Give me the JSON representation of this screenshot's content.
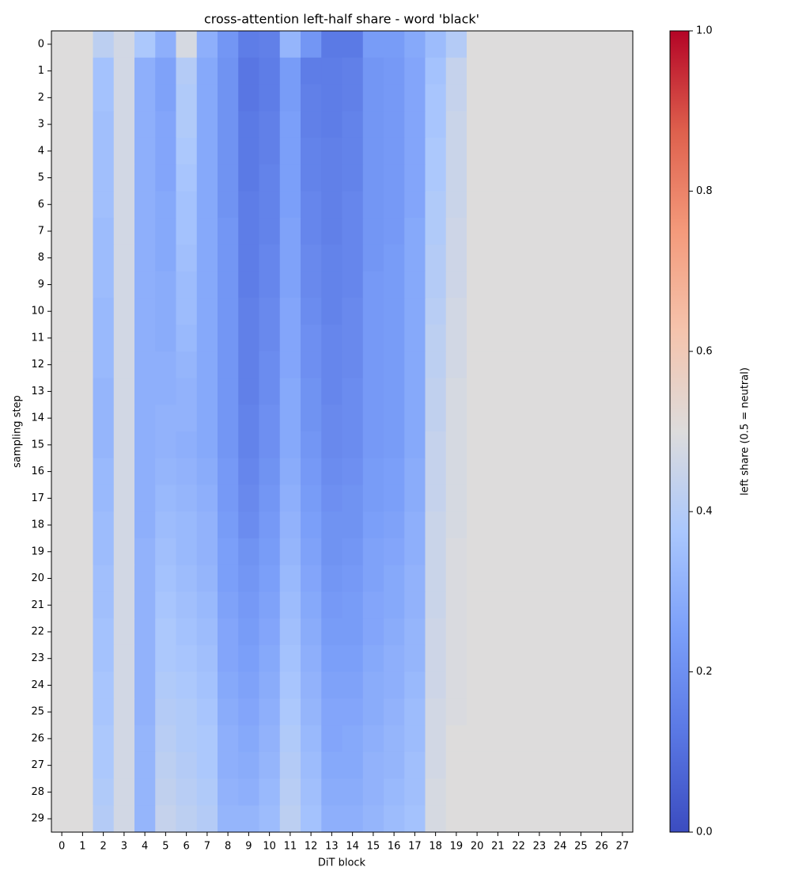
{
  "chart_data": {
    "type": "heatmap",
    "title": "cross-attention left-half share - word 'black'",
    "x_label": "DiT block",
    "y_label": "sampling step",
    "colorbar_label": "left share (0.5 = neutral)",
    "colormap": "coolwarm",
    "clim": [
      0,
      1
    ],
    "cticks": [
      {
        "value": 0,
        "label": "0.0"
      },
      0.2,
      0.4,
      0.6,
      0.8,
      {
        "value": 1,
        "label": "1.0"
      }
    ],
    "x": [
      0,
      1,
      2,
      3,
      4,
      5,
      6,
      7,
      8,
      9,
      10,
      11,
      12,
      13,
      14,
      15,
      16,
      17,
      18,
      19,
      20,
      21,
      22,
      23,
      24,
      25,
      26,
      27
    ],
    "y": [
      0,
      1,
      2,
      3,
      4,
      5,
      6,
      7,
      8,
      9,
      10,
      11,
      12,
      13,
      14,
      15,
      16,
      17,
      18,
      19,
      20,
      21,
      22,
      23,
      24,
      25,
      26,
      27,
      28,
      29
    ],
    "z": [
      [
        0.5,
        0.5,
        0.42,
        0.47,
        0.38,
        0.3,
        0.48,
        0.3,
        0.22,
        0.14,
        0.15,
        0.32,
        0.22,
        0.13,
        0.13,
        0.24,
        0.24,
        0.28,
        0.34,
        0.4,
        0.5,
        0.5,
        0.5,
        0.5,
        0.5,
        0.5,
        0.5,
        0.5
      ],
      [
        0.5,
        0.5,
        0.36,
        0.47,
        0.3,
        0.26,
        0.4,
        0.28,
        0.21,
        0.12,
        0.14,
        0.24,
        0.14,
        0.14,
        0.15,
        0.22,
        0.23,
        0.27,
        0.36,
        0.44,
        0.5,
        0.5,
        0.5,
        0.5,
        0.5,
        0.5,
        0.5,
        0.5
      ],
      [
        0.5,
        0.5,
        0.36,
        0.47,
        0.3,
        0.26,
        0.39,
        0.28,
        0.21,
        0.12,
        0.14,
        0.24,
        0.15,
        0.14,
        0.15,
        0.22,
        0.23,
        0.27,
        0.37,
        0.44,
        0.5,
        0.5,
        0.5,
        0.5,
        0.5,
        0.5,
        0.5,
        0.5
      ],
      [
        0.5,
        0.5,
        0.35,
        0.47,
        0.3,
        0.27,
        0.39,
        0.28,
        0.21,
        0.13,
        0.15,
        0.25,
        0.15,
        0.14,
        0.16,
        0.22,
        0.23,
        0.27,
        0.37,
        0.45,
        0.5,
        0.5,
        0.5,
        0.5,
        0.5,
        0.5,
        0.5,
        0.5
      ],
      [
        0.5,
        0.5,
        0.35,
        0.47,
        0.3,
        0.27,
        0.38,
        0.28,
        0.21,
        0.13,
        0.15,
        0.25,
        0.16,
        0.15,
        0.16,
        0.22,
        0.23,
        0.27,
        0.38,
        0.45,
        0.5,
        0.5,
        0.5,
        0.5,
        0.5,
        0.5,
        0.5,
        0.5
      ],
      [
        0.5,
        0.5,
        0.35,
        0.47,
        0.3,
        0.27,
        0.37,
        0.28,
        0.21,
        0.13,
        0.16,
        0.25,
        0.16,
        0.15,
        0.16,
        0.22,
        0.23,
        0.27,
        0.38,
        0.45,
        0.5,
        0.5,
        0.5,
        0.5,
        0.5,
        0.5,
        0.5,
        0.5
      ],
      [
        0.5,
        0.5,
        0.35,
        0.47,
        0.3,
        0.28,
        0.36,
        0.28,
        0.21,
        0.14,
        0.16,
        0.25,
        0.17,
        0.15,
        0.17,
        0.22,
        0.23,
        0.27,
        0.39,
        0.45,
        0.5,
        0.5,
        0.5,
        0.5,
        0.5,
        0.5,
        0.5,
        0.5
      ],
      [
        0.5,
        0.5,
        0.34,
        0.47,
        0.3,
        0.28,
        0.36,
        0.28,
        0.22,
        0.14,
        0.16,
        0.26,
        0.17,
        0.15,
        0.17,
        0.22,
        0.23,
        0.28,
        0.39,
        0.46,
        0.5,
        0.5,
        0.5,
        0.5,
        0.5,
        0.5,
        0.5,
        0.5
      ],
      [
        0.5,
        0.5,
        0.34,
        0.47,
        0.3,
        0.28,
        0.35,
        0.28,
        0.22,
        0.14,
        0.17,
        0.26,
        0.18,
        0.16,
        0.17,
        0.22,
        0.24,
        0.28,
        0.4,
        0.46,
        0.5,
        0.5,
        0.5,
        0.5,
        0.5,
        0.5,
        0.5,
        0.5
      ],
      [
        0.5,
        0.5,
        0.34,
        0.47,
        0.3,
        0.29,
        0.34,
        0.28,
        0.22,
        0.14,
        0.17,
        0.26,
        0.18,
        0.16,
        0.17,
        0.23,
        0.24,
        0.28,
        0.4,
        0.46,
        0.5,
        0.5,
        0.5,
        0.5,
        0.5,
        0.5,
        0.5,
        0.5
      ],
      [
        0.5,
        0.5,
        0.33,
        0.47,
        0.3,
        0.29,
        0.34,
        0.28,
        0.22,
        0.15,
        0.18,
        0.27,
        0.19,
        0.16,
        0.18,
        0.23,
        0.24,
        0.28,
        0.41,
        0.47,
        0.5,
        0.5,
        0.5,
        0.5,
        0.5,
        0.5,
        0.5,
        0.5
      ],
      [
        0.5,
        0.5,
        0.33,
        0.47,
        0.3,
        0.29,
        0.33,
        0.28,
        0.22,
        0.15,
        0.18,
        0.27,
        0.2,
        0.17,
        0.18,
        0.23,
        0.24,
        0.28,
        0.42,
        0.47,
        0.5,
        0.5,
        0.5,
        0.5,
        0.5,
        0.5,
        0.5,
        0.5
      ],
      [
        0.5,
        0.5,
        0.33,
        0.47,
        0.3,
        0.3,
        0.32,
        0.28,
        0.22,
        0.15,
        0.19,
        0.27,
        0.2,
        0.17,
        0.18,
        0.23,
        0.24,
        0.28,
        0.42,
        0.47,
        0.5,
        0.5,
        0.5,
        0.5,
        0.5,
        0.5,
        0.5,
        0.5
      ],
      [
        0.5,
        0.5,
        0.32,
        0.47,
        0.3,
        0.3,
        0.31,
        0.28,
        0.22,
        0.15,
        0.19,
        0.28,
        0.21,
        0.17,
        0.19,
        0.23,
        0.24,
        0.28,
        0.43,
        0.48,
        0.5,
        0.5,
        0.5,
        0.5,
        0.5,
        0.5,
        0.5,
        0.5
      ],
      [
        0.5,
        0.5,
        0.32,
        0.47,
        0.3,
        0.31,
        0.31,
        0.28,
        0.22,
        0.16,
        0.2,
        0.28,
        0.21,
        0.18,
        0.19,
        0.23,
        0.24,
        0.28,
        0.43,
        0.48,
        0.5,
        0.5,
        0.5,
        0.5,
        0.5,
        0.5,
        0.5,
        0.5
      ],
      [
        0.5,
        0.5,
        0.32,
        0.47,
        0.3,
        0.31,
        0.3,
        0.28,
        0.22,
        0.16,
        0.2,
        0.28,
        0.22,
        0.18,
        0.19,
        0.23,
        0.24,
        0.28,
        0.44,
        0.48,
        0.5,
        0.5,
        0.5,
        0.5,
        0.5,
        0.5,
        0.5,
        0.5
      ],
      [
        0.5,
        0.5,
        0.33,
        0.47,
        0.3,
        0.32,
        0.31,
        0.29,
        0.23,
        0.17,
        0.21,
        0.29,
        0.23,
        0.19,
        0.2,
        0.24,
        0.25,
        0.29,
        0.44,
        0.48,
        0.5,
        0.5,
        0.5,
        0.5,
        0.5,
        0.5,
        0.5,
        0.5
      ],
      [
        0.5,
        0.5,
        0.33,
        0.47,
        0.3,
        0.33,
        0.32,
        0.3,
        0.23,
        0.18,
        0.22,
        0.3,
        0.24,
        0.2,
        0.21,
        0.24,
        0.25,
        0.29,
        0.44,
        0.48,
        0.5,
        0.5,
        0.5,
        0.5,
        0.5,
        0.5,
        0.5,
        0.5
      ],
      [
        0.5,
        0.5,
        0.34,
        0.47,
        0.3,
        0.34,
        0.33,
        0.31,
        0.24,
        0.19,
        0.23,
        0.31,
        0.25,
        0.21,
        0.21,
        0.25,
        0.26,
        0.3,
        0.45,
        0.48,
        0.5,
        0.5,
        0.5,
        0.5,
        0.5,
        0.5,
        0.5,
        0.5
      ],
      [
        0.5,
        0.5,
        0.34,
        0.47,
        0.31,
        0.35,
        0.33,
        0.31,
        0.25,
        0.21,
        0.24,
        0.32,
        0.26,
        0.21,
        0.22,
        0.26,
        0.27,
        0.3,
        0.45,
        0.49,
        0.5,
        0.5,
        0.5,
        0.5,
        0.5,
        0.5,
        0.5,
        0.5
      ],
      [
        0.5,
        0.5,
        0.35,
        0.47,
        0.31,
        0.36,
        0.34,
        0.32,
        0.25,
        0.22,
        0.25,
        0.33,
        0.27,
        0.22,
        0.23,
        0.26,
        0.28,
        0.31,
        0.45,
        0.49,
        0.5,
        0.5,
        0.5,
        0.5,
        0.5,
        0.5,
        0.5,
        0.5
      ],
      [
        0.5,
        0.5,
        0.35,
        0.47,
        0.31,
        0.37,
        0.35,
        0.33,
        0.26,
        0.23,
        0.26,
        0.34,
        0.28,
        0.23,
        0.24,
        0.27,
        0.28,
        0.31,
        0.45,
        0.49,
        0.5,
        0.5,
        0.5,
        0.5,
        0.5,
        0.5,
        0.5,
        0.5
      ],
      [
        0.5,
        0.5,
        0.36,
        0.47,
        0.31,
        0.38,
        0.36,
        0.34,
        0.27,
        0.24,
        0.27,
        0.35,
        0.29,
        0.24,
        0.24,
        0.27,
        0.29,
        0.32,
        0.46,
        0.49,
        0.5,
        0.5,
        0.5,
        0.5,
        0.5,
        0.5,
        0.5,
        0.5
      ],
      [
        0.5,
        0.5,
        0.36,
        0.47,
        0.31,
        0.38,
        0.37,
        0.35,
        0.27,
        0.25,
        0.28,
        0.36,
        0.3,
        0.25,
        0.25,
        0.28,
        0.3,
        0.32,
        0.46,
        0.49,
        0.5,
        0.5,
        0.5,
        0.5,
        0.5,
        0.5,
        0.5,
        0.5
      ],
      [
        0.5,
        0.5,
        0.37,
        0.47,
        0.31,
        0.39,
        0.38,
        0.36,
        0.28,
        0.26,
        0.29,
        0.37,
        0.31,
        0.26,
        0.26,
        0.29,
        0.3,
        0.33,
        0.46,
        0.49,
        0.5,
        0.5,
        0.5,
        0.5,
        0.5,
        0.5,
        0.5,
        0.5
      ],
      [
        0.5,
        0.5,
        0.37,
        0.47,
        0.31,
        0.4,
        0.39,
        0.37,
        0.29,
        0.27,
        0.3,
        0.38,
        0.32,
        0.27,
        0.27,
        0.29,
        0.31,
        0.34,
        0.47,
        0.49,
        0.5,
        0.5,
        0.5,
        0.5,
        0.5,
        0.5,
        0.5,
        0.5
      ],
      [
        0.5,
        0.5,
        0.38,
        0.47,
        0.32,
        0.41,
        0.39,
        0.38,
        0.3,
        0.28,
        0.31,
        0.39,
        0.33,
        0.27,
        0.28,
        0.3,
        0.32,
        0.34,
        0.47,
        0.5,
        0.5,
        0.5,
        0.5,
        0.5,
        0.5,
        0.5,
        0.5,
        0.5
      ],
      [
        0.5,
        0.5,
        0.38,
        0.47,
        0.32,
        0.42,
        0.4,
        0.38,
        0.3,
        0.29,
        0.32,
        0.4,
        0.34,
        0.28,
        0.28,
        0.31,
        0.32,
        0.35,
        0.47,
        0.5,
        0.5,
        0.5,
        0.5,
        0.5,
        0.5,
        0.5,
        0.5,
        0.5
      ],
      [
        0.5,
        0.5,
        0.39,
        0.47,
        0.32,
        0.43,
        0.41,
        0.39,
        0.31,
        0.3,
        0.33,
        0.41,
        0.35,
        0.29,
        0.29,
        0.31,
        0.33,
        0.35,
        0.48,
        0.5,
        0.5,
        0.5,
        0.5,
        0.5,
        0.5,
        0.5,
        0.5,
        0.5
      ],
      [
        0.5,
        0.5,
        0.4,
        0.47,
        0.32,
        0.44,
        0.42,
        0.4,
        0.32,
        0.32,
        0.34,
        0.42,
        0.36,
        0.3,
        0.3,
        0.32,
        0.34,
        0.36,
        0.48,
        0.5,
        0.5,
        0.5,
        0.5,
        0.5,
        0.5,
        0.5,
        0.5,
        0.5
      ]
    ]
  }
}
